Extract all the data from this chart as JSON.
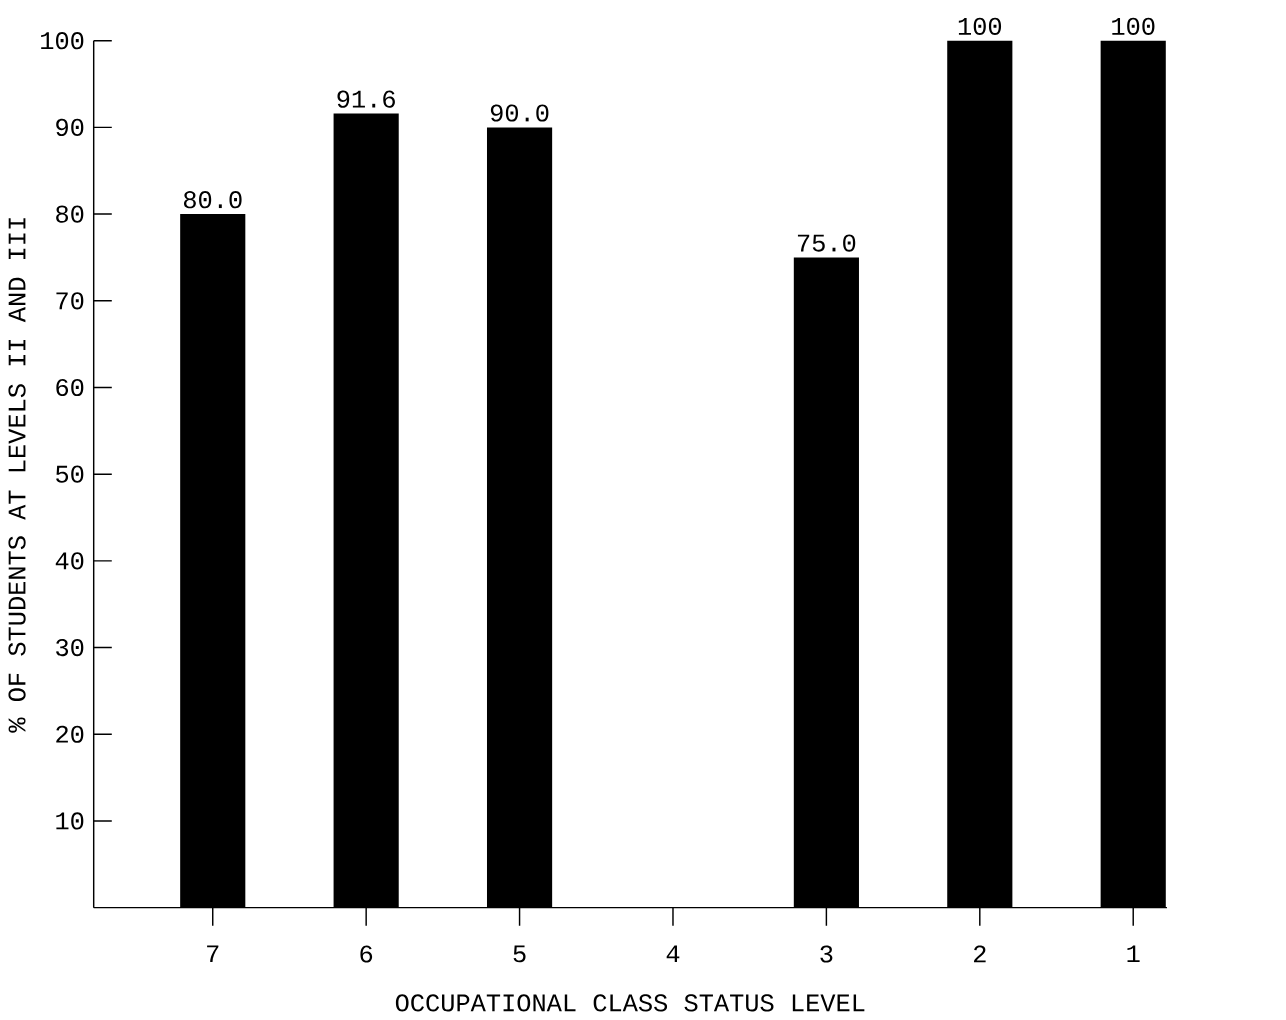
{
  "chart_data": {
    "type": "bar",
    "xlabel": "OCCUPATIONAL CLASS STATUS LEVEL",
    "ylabel": "% OF STUDENTS AT LEVELS II AND III",
    "categories": [
      "7",
      "6",
      "5",
      "4",
      "3",
      "2",
      "1"
    ],
    "values": [
      80.0,
      91.6,
      90.0,
      null,
      75.0,
      100,
      100
    ],
    "value_labels": [
      "80.0",
      "91.6",
      "90.0",
      null,
      "75.0",
      "100",
      "100"
    ],
    "color": "#000000",
    "ylim": [
      0,
      100
    ],
    "yticks": [
      10,
      20,
      30,
      40,
      50,
      60,
      70,
      80,
      90,
      100
    ]
  }
}
